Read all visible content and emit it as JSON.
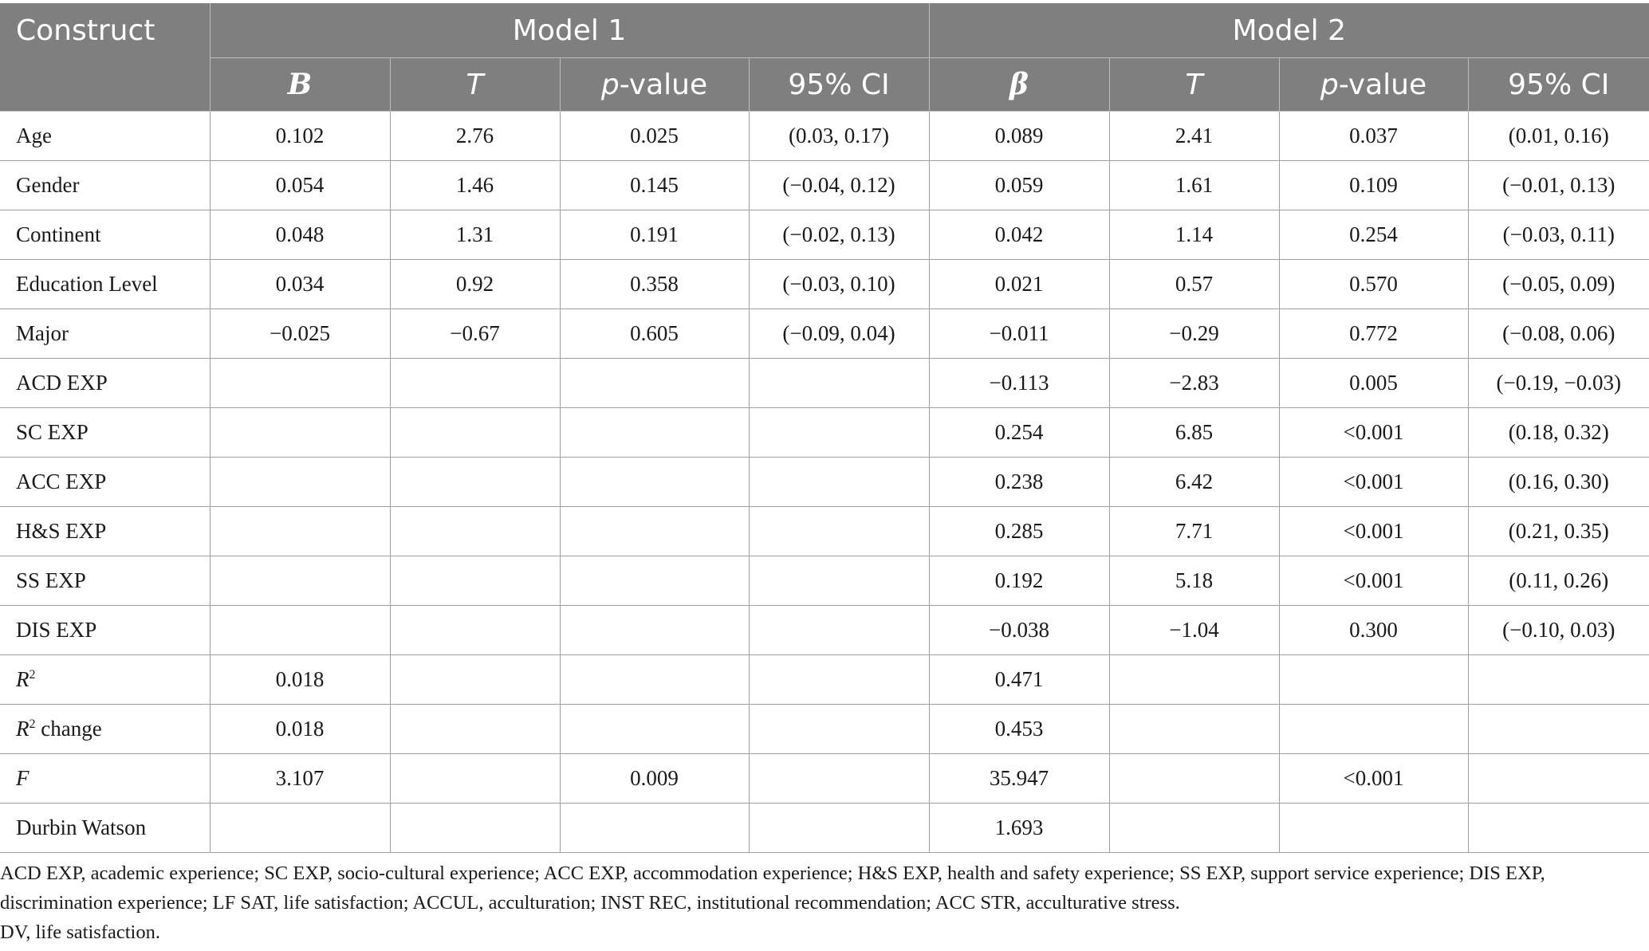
{
  "header": {
    "construct": "Construct",
    "model1": "Model 1",
    "model2": "Model 2",
    "m1_b": "B",
    "m1_t": "T",
    "m1_p_italic": "p",
    "m1_p_rest": "-value",
    "m1_ci": "95% CI",
    "m2_beta": "β",
    "m2_t": "T",
    "m2_p_italic": "p",
    "m2_p_rest": "-value",
    "m2_ci": "95% CI"
  },
  "rows": [
    {
      "label": "Age",
      "m1_b": "0.102",
      "m1_t": "2.76",
      "m1_p": "0.025",
      "m1_ci": "(0.03, 0.17)",
      "m2_b": "0.089",
      "m2_t": "2.41",
      "m2_p": "0.037",
      "m2_ci": "(0.01, 0.16)"
    },
    {
      "label": "Gender",
      "m1_b": "0.054",
      "m1_t": "1.46",
      "m1_p": "0.145",
      "m1_ci": "(−0.04, 0.12)",
      "m2_b": "0.059",
      "m2_t": "1.61",
      "m2_p": "0.109",
      "m2_ci": "(−0.01, 0.13)"
    },
    {
      "label": "Continent",
      "m1_b": "0.048",
      "m1_t": "1.31",
      "m1_p": "0.191",
      "m1_ci": "(−0.02, 0.13)",
      "m2_b": "0.042",
      "m2_t": "1.14",
      "m2_p": "0.254",
      "m2_ci": "(−0.03, 0.11)"
    },
    {
      "label": "Education Level",
      "m1_b": "0.034",
      "m1_t": "0.92",
      "m1_p": "0.358",
      "m1_ci": "(−0.03, 0.10)",
      "m2_b": "0.021",
      "m2_t": "0.57",
      "m2_p": "0.570",
      "m2_ci": "(−0.05, 0.09)"
    },
    {
      "label": "Major",
      "m1_b": "−0.025",
      "m1_t": "−0.67",
      "m1_p": "0.605",
      "m1_ci": "(−0.09, 0.04)",
      "m2_b": "−0.011",
      "m2_t": "−0.29",
      "m2_p": "0.772",
      "m2_ci": "(−0.08, 0.06)"
    },
    {
      "label": "ACD EXP",
      "m1_b": "",
      "m1_t": "",
      "m1_p": "",
      "m1_ci": "",
      "m2_b": "−0.113",
      "m2_t": "−2.83",
      "m2_p": "0.005",
      "m2_ci": "(−0.19, −0.03)"
    },
    {
      "label": "SC EXP",
      "m1_b": "",
      "m1_t": "",
      "m1_p": "",
      "m1_ci": "",
      "m2_b": "0.254",
      "m2_t": "6.85",
      "m2_p": "<0.001",
      "m2_ci": "(0.18, 0.32)"
    },
    {
      "label": "ACC EXP",
      "m1_b": "",
      "m1_t": "",
      "m1_p": "",
      "m1_ci": "",
      "m2_b": "0.238",
      "m2_t": "6.42",
      "m2_p": "<0.001",
      "m2_ci": "(0.16, 0.30)"
    },
    {
      "label": "H&S EXP",
      "m1_b": "",
      "m1_t": "",
      "m1_p": "",
      "m1_ci": "",
      "m2_b": "0.285",
      "m2_t": "7.71",
      "m2_p": "<0.001",
      "m2_ci": "(0.21, 0.35)"
    },
    {
      "label": "SS EXP",
      "m1_b": "",
      "m1_t": "",
      "m1_p": "",
      "m1_ci": "",
      "m2_b": "0.192",
      "m2_t": "5.18",
      "m2_p": "<0.001",
      "m2_ci": "(0.11, 0.26)"
    },
    {
      "label": "DIS EXP",
      "m1_b": "",
      "m1_t": "",
      "m1_p": "",
      "m1_ci": "",
      "m2_b": "−0.038",
      "m2_t": "−1.04",
      "m2_p": "0.300",
      "m2_ci": "(−0.10, 0.03)"
    }
  ],
  "stats": {
    "r2_label_italic": "R",
    "r2_label_sup": "2",
    "r2_m1": "0.018",
    "r2_m2": "0.471",
    "r2change_label_italic": "R",
    "r2change_label_sup": "2",
    "r2change_label_rest": " change",
    "r2change_m1": "0.018",
    "r2change_m2": "0.453",
    "f_label": "F",
    "f_m1": "3.107",
    "f_m1_p": "0.009",
    "f_m2": "35.947",
    "f_m2_p": "<0.001",
    "dw_label": "Durbin Watson",
    "dw_m2": "1.693"
  },
  "notes": {
    "abbreviations": "ACD EXP, academic experience; SC EXP, socio-cultural experience; ACC EXP, accommodation experience; H&S EXP, health and safety experience; SS EXP, support service experience; DIS EXP, discrimination experience; LF SAT, life satisfaction; ACCUL, acculturation; INST REC, institutional recommendation; ACC STR, acculturative stress.",
    "dv": "DV, life satisfaction."
  },
  "colors": {
    "header_bg": "#7f7f7f",
    "header_text": "#ffffff",
    "grid": "#9e9e9e"
  }
}
